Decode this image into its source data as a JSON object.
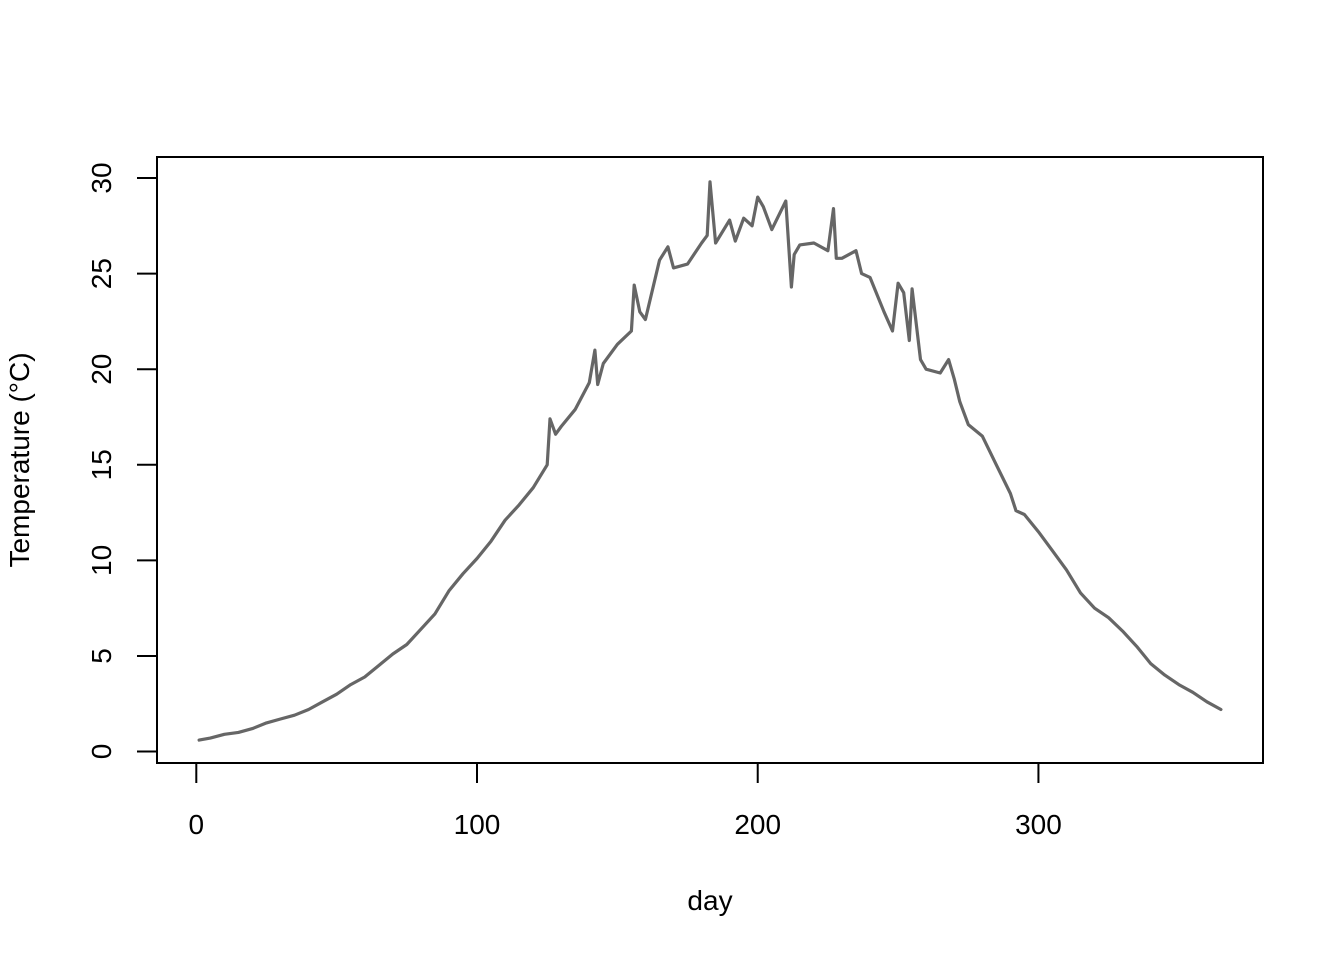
{
  "chart_data": {
    "type": "line",
    "title": "",
    "xlabel": "day",
    "ylabel": "Temperature (°C)",
    "xlim": [
      -14,
      380
    ],
    "ylim": [
      -0.6,
      31.1
    ],
    "xticks": [
      0,
      100,
      200,
      300
    ],
    "yticks": [
      0,
      5,
      10,
      15,
      20,
      25,
      30
    ],
    "grid": false,
    "legend": "none",
    "line_color": "#666666",
    "series": [
      {
        "x": [
          1,
          5,
          10,
          15,
          20,
          25,
          30,
          35,
          40,
          45,
          50,
          55,
          60,
          65,
          70,
          75,
          80,
          85,
          90,
          95,
          100,
          105,
          110,
          115,
          120,
          125,
          126,
          128,
          130,
          135,
          140,
          142,
          143,
          145,
          150,
          155,
          156,
          158,
          160,
          165,
          168,
          170,
          175,
          180,
          182,
          183,
          185,
          190,
          192,
          195,
          198,
          200,
          202,
          205,
          210,
          212,
          213,
          215,
          220,
          225,
          227,
          228,
          230,
          235,
          237,
          240,
          245,
          248,
          250,
          252,
          254,
          255,
          258,
          260,
          265,
          268,
          270,
          272,
          275,
          280,
          285,
          290,
          292,
          295,
          300,
          305,
          310,
          315,
          320,
          325,
          330,
          335,
          340,
          345,
          350,
          355,
          360,
          365
        ],
        "y": [
          0.6,
          0.7,
          0.9,
          1.0,
          1.2,
          1.5,
          1.7,
          1.9,
          2.2,
          2.6,
          3.0,
          3.5,
          3.9,
          4.5,
          5.1,
          5.6,
          6.4,
          7.2,
          8.4,
          9.3,
          10.1,
          11.0,
          12.1,
          12.9,
          13.8,
          15.0,
          17.4,
          16.6,
          17.0,
          17.9,
          19.3,
          21.0,
          19.2,
          20.3,
          21.3,
          22.0,
          24.4,
          23.0,
          22.6,
          25.7,
          26.4,
          25.3,
          25.5,
          26.6,
          27.0,
          29.8,
          26.6,
          27.8,
          26.7,
          27.9,
          27.5,
          29.0,
          28.5,
          27.3,
          28.8,
          24.3,
          26.0,
          26.5,
          26.6,
          26.2,
          28.4,
          25.8,
          25.8,
          26.2,
          25.0,
          24.8,
          23.0,
          22.0,
          24.5,
          24.0,
          21.5,
          24.2,
          20.5,
          20.0,
          19.8,
          20.5,
          19.5,
          18.3,
          17.1,
          16.5,
          15.0,
          13.5,
          12.6,
          12.4,
          11.5,
          10.5,
          9.5,
          8.3,
          7.5,
          7.0,
          6.3,
          5.5,
          4.6,
          4.0,
          3.5,
          3.1,
          2.6,
          2.2
        ]
      }
    ]
  }
}
